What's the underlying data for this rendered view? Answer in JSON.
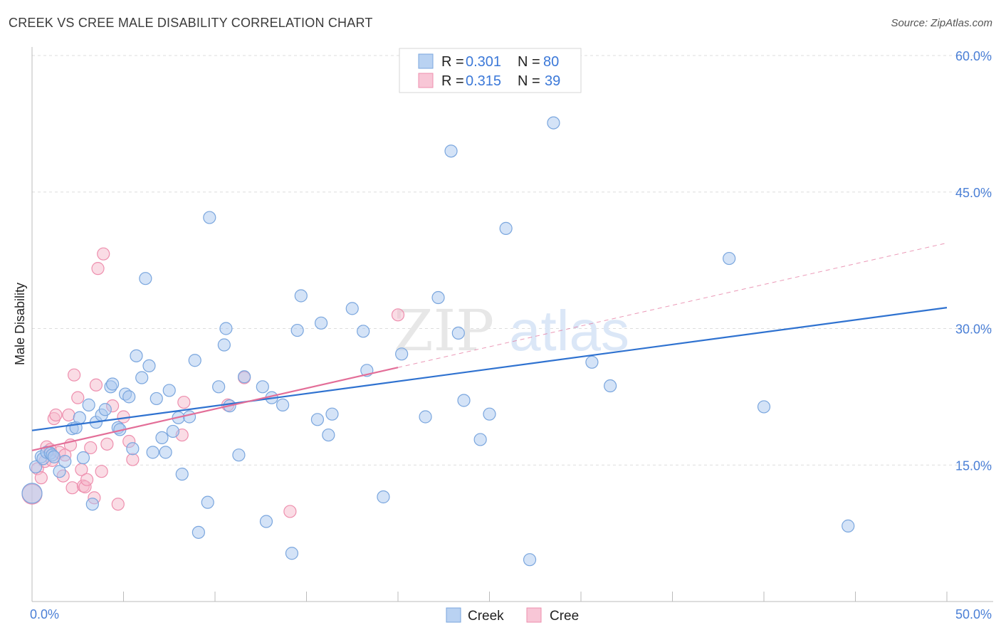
{
  "title": "CREEK VS CREE MALE DISABILITY CORRELATION CHART",
  "source": "Source: ZipAtlas.com",
  "watermark": "ZIPatlas",
  "colors": {
    "creek_fill": "#a9c8f0",
    "creek_stroke": "#7aa6de",
    "creek_line": "#2f72d0",
    "cree_fill": "#f6b9cc",
    "cree_stroke": "#ee8fae",
    "cree_line": "#e36e98",
    "tick_label": "#4a7fd6",
    "grid": "#dddddd"
  },
  "legend": {
    "rows": [
      {
        "r_label": "R =",
        "r_value": "0.301",
        "n_label": "N =",
        "n_value": "80"
      },
      {
        "r_label": "R =",
        "r_value": "0.315",
        "n_label": "N =",
        "n_value": "39"
      }
    ]
  },
  "chart_data": {
    "type": "scatter",
    "title": "CREEK VS CREE MALE DISABILITY CORRELATION CHART",
    "xlabel": "",
    "ylabel": "Male Disability",
    "xlim": [
      0,
      50
    ],
    "ylim": [
      0,
      60
    ],
    "x_tick_labels": [
      "0.0%",
      "50.0%"
    ],
    "y_ticks": [
      15,
      30,
      45,
      60
    ],
    "y_tick_labels": [
      "15.0%",
      "30.0%",
      "45.0%",
      "60.0%"
    ],
    "grid": true,
    "legend_position": "top-center",
    "series": [
      {
        "name": "Creek",
        "r": 0.301,
        "n": 80,
        "trend": {
          "x0": 0,
          "y0": 18.8,
          "x1": 50,
          "y1": 32.3,
          "solid_until": 50
        },
        "points": [
          [
            0.0,
            11.9
          ],
          [
            0.2,
            14.8
          ],
          [
            0.5,
            15.9
          ],
          [
            0.6,
            15.7
          ],
          [
            0.8,
            16.4
          ],
          [
            1.0,
            16.3
          ],
          [
            1.1,
            16.1
          ],
          [
            1.2,
            15.9
          ],
          [
            1.5,
            14.3
          ],
          [
            1.8,
            15.4
          ],
          [
            2.2,
            19.0
          ],
          [
            2.4,
            19.1
          ],
          [
            2.6,
            20.2
          ],
          [
            2.8,
            15.8
          ],
          [
            3.1,
            21.6
          ],
          [
            3.3,
            10.7
          ],
          [
            3.5,
            19.7
          ],
          [
            3.8,
            20.5
          ],
          [
            4.0,
            21.1
          ],
          [
            4.3,
            23.6
          ],
          [
            4.4,
            23.9
          ],
          [
            4.7,
            19.1
          ],
          [
            4.8,
            18.9
          ],
          [
            5.1,
            22.8
          ],
          [
            5.3,
            22.5
          ],
          [
            5.5,
            16.8
          ],
          [
            5.7,
            27.0
          ],
          [
            6.0,
            24.6
          ],
          [
            6.2,
            35.5
          ],
          [
            6.4,
            25.9
          ],
          [
            6.6,
            16.4
          ],
          [
            6.8,
            22.3
          ],
          [
            7.1,
            18.0
          ],
          [
            7.3,
            16.4
          ],
          [
            7.5,
            23.2
          ],
          [
            7.7,
            18.7
          ],
          [
            8.0,
            20.2
          ],
          [
            8.2,
            14.0
          ],
          [
            8.6,
            20.3
          ],
          [
            8.9,
            26.5
          ],
          [
            9.1,
            7.6
          ],
          [
            9.6,
            10.9
          ],
          [
            9.7,
            42.2
          ],
          [
            10.2,
            23.6
          ],
          [
            10.5,
            28.2
          ],
          [
            10.6,
            30.0
          ],
          [
            10.8,
            21.5
          ],
          [
            11.3,
            16.1
          ],
          [
            11.6,
            24.7
          ],
          [
            12.6,
            23.6
          ],
          [
            12.8,
            8.8
          ],
          [
            13.1,
            22.4
          ],
          [
            13.7,
            21.6
          ],
          [
            14.2,
            5.3
          ],
          [
            14.5,
            29.8
          ],
          [
            14.7,
            33.6
          ],
          [
            15.6,
            20.0
          ],
          [
            15.8,
            30.6
          ],
          [
            16.2,
            18.3
          ],
          [
            16.4,
            20.6
          ],
          [
            17.5,
            32.2
          ],
          [
            18.1,
            29.7
          ],
          [
            18.3,
            25.4
          ],
          [
            19.2,
            11.5
          ],
          [
            20.2,
            27.2
          ],
          [
            21.5,
            20.3
          ],
          [
            22.2,
            33.4
          ],
          [
            22.9,
            49.5
          ],
          [
            23.3,
            29.5
          ],
          [
            23.6,
            22.1
          ],
          [
            24.5,
            17.8
          ],
          [
            25.0,
            20.6
          ],
          [
            25.9,
            41.0
          ],
          [
            27.2,
            4.6
          ],
          [
            28.5,
            52.6
          ],
          [
            30.6,
            26.3
          ],
          [
            31.6,
            23.7
          ],
          [
            38.1,
            37.7
          ],
          [
            40.0,
            21.4
          ],
          [
            44.6,
            8.3
          ]
        ]
      },
      {
        "name": "Cree",
        "r": 0.315,
        "n": 39,
        "trend": {
          "x0": 0,
          "y0": 16.6,
          "x1": 50,
          "y1": 39.4,
          "solid_until": 20
        },
        "points": [
          [
            0.0,
            11.8
          ],
          [
            0.3,
            14.6
          ],
          [
            0.5,
            13.6
          ],
          [
            0.7,
            15.4
          ],
          [
            0.8,
            17.0
          ],
          [
            1.0,
            16.7
          ],
          [
            1.1,
            15.5
          ],
          [
            1.2,
            20.1
          ],
          [
            1.3,
            20.5
          ],
          [
            1.5,
            16.4
          ],
          [
            1.7,
            13.8
          ],
          [
            1.8,
            16.1
          ],
          [
            2.0,
            20.5
          ],
          [
            2.1,
            17.2
          ],
          [
            2.2,
            12.5
          ],
          [
            2.3,
            24.9
          ],
          [
            2.5,
            22.4
          ],
          [
            2.7,
            14.5
          ],
          [
            2.8,
            12.7
          ],
          [
            2.9,
            12.6
          ],
          [
            3.0,
            13.4
          ],
          [
            3.2,
            16.9
          ],
          [
            3.4,
            11.4
          ],
          [
            3.5,
            23.8
          ],
          [
            3.6,
            36.6
          ],
          [
            3.8,
            14.3
          ],
          [
            3.9,
            38.2
          ],
          [
            4.1,
            17.3
          ],
          [
            4.4,
            21.5
          ],
          [
            4.7,
            10.7
          ],
          [
            5.0,
            20.3
          ],
          [
            5.3,
            17.6
          ],
          [
            5.5,
            15.6
          ],
          [
            8.3,
            21.9
          ],
          [
            8.2,
            18.3
          ],
          [
            10.7,
            21.6
          ],
          [
            11.6,
            24.6
          ],
          [
            14.1,
            9.9
          ],
          [
            20.0,
            31.5
          ]
        ]
      }
    ]
  },
  "bottom_legend": [
    {
      "label": "Creek"
    },
    {
      "label": "Cree"
    }
  ]
}
